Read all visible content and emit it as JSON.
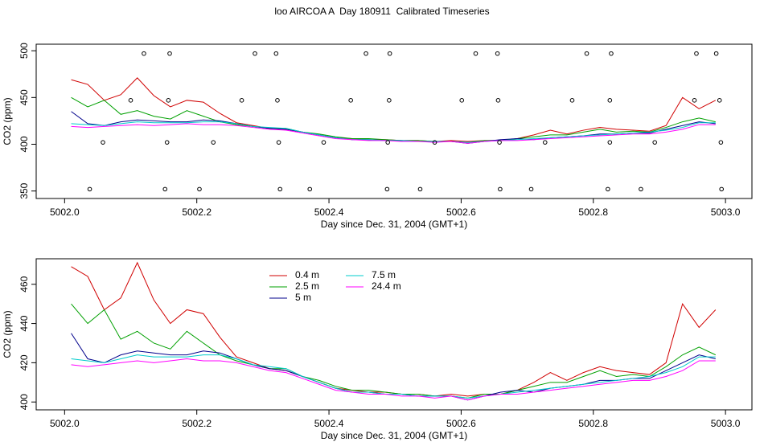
{
  "chart_data": [
    {
      "type": "line",
      "title": "loo AIRCOA A  Day 180911  Calibrated Timeseries",
      "xlabel": "Day since Dec. 31, 2004 (GMT+1)",
      "ylabel": "CO2 (ppm)",
      "x": [
        5002.01,
        5002.035,
        5002.06,
        5002.085,
        5002.11,
        5002.135,
        5002.16,
        5002.185,
        5002.21,
        5002.235,
        5002.26,
        5002.285,
        5002.31,
        5002.335,
        5002.36,
        5002.385,
        5002.41,
        5002.435,
        5002.46,
        5002.485,
        5002.51,
        5002.535,
        5002.56,
        5002.585,
        5002.61,
        5002.635,
        5002.66,
        5002.685,
        5002.71,
        5002.735,
        5002.76,
        5002.785,
        5002.81,
        5002.835,
        5002.86,
        5002.885,
        5002.91,
        5002.935,
        5002.96,
        5002.985
      ],
      "series": [
        {
          "color": "#d00000",
          "values": [
            469,
            464,
            447,
            453,
            471,
            452,
            440,
            447,
            445,
            433,
            423,
            420,
            417,
            416,
            413,
            410,
            407,
            406,
            405,
            405,
            404,
            404,
            403,
            404,
            403,
            404,
            404,
            406,
            410,
            415,
            411,
            415,
            418,
            416,
            415,
            414,
            420,
            450,
            438,
            447
          ]
        },
        {
          "color": "#00a000",
          "values": [
            450,
            440,
            447,
            432,
            436,
            430,
            427,
            436,
            430,
            424,
            421,
            419,
            417,
            417,
            413,
            411,
            408,
            406,
            406,
            405,
            404,
            404,
            403,
            403,
            402,
            404,
            404,
            406,
            408,
            410,
            410,
            413,
            416,
            413,
            414,
            413,
            418,
            424,
            428,
            424
          ]
        },
        {
          "color": "#00008b",
          "values": [
            435,
            422,
            420,
            424,
            426,
            425,
            424,
            424,
            426,
            425,
            422,
            419,
            417,
            416,
            413,
            410,
            407,
            405,
            405,
            404,
            404,
            403,
            403,
            403,
            401,
            403,
            405,
            406,
            405,
            407,
            408,
            409,
            411,
            411,
            412,
            412,
            416,
            420,
            424,
            422
          ]
        },
        {
          "color": "#00cccc",
          "values": [
            422,
            421,
            420,
            422,
            424,
            423,
            423,
            423,
            424,
            424,
            422,
            419,
            418,
            417,
            413,
            410,
            407,
            405,
            405,
            404,
            404,
            403,
            403,
            403,
            402,
            403,
            404,
            405,
            406,
            407,
            408,
            409,
            410,
            411,
            412,
            413,
            415,
            418,
            423,
            423
          ]
        },
        {
          "color": "#ff00ff",
          "values": [
            419,
            418,
            419,
            420,
            421,
            420,
            421,
            422,
            421,
            421,
            420,
            418,
            416,
            415,
            412,
            409,
            406,
            405,
            404,
            404,
            403,
            403,
            402,
            403,
            401,
            403,
            404,
            404,
            405,
            406,
            407,
            408,
            409,
            410,
            411,
            411,
            413,
            416,
            421,
            421
          ]
        }
      ],
      "points": {
        "color": "#000000",
        "x": [
          5002.12,
          5002.159,
          5002.288,
          5002.32,
          5002.456,
          5002.492,
          5002.622,
          5002.655,
          5002.79,
          5002.827,
          5002.956,
          5002.986,
          5002.1,
          5002.157,
          5002.268,
          5002.322,
          5002.433,
          5002.491,
          5002.601,
          5002.656,
          5002.768,
          5002.825,
          5002.953,
          5002.991,
          5002.058,
          5002.155,
          5002.225,
          5002.324,
          5002.392,
          5002.489,
          5002.56,
          5002.658,
          5002.727,
          5002.825,
          5002.893,
          5002.993,
          5002.038,
          5002.152,
          5002.204,
          5002.326,
          5002.371,
          5002.488,
          5002.538,
          5002.659,
          5002.706,
          5002.822,
          5002.872,
          5002.994
        ],
        "y": [
          497,
          497,
          497,
          497,
          497,
          497,
          497,
          497,
          497,
          497,
          497,
          497,
          447,
          447,
          447,
          447,
          447,
          447,
          447,
          447,
          447,
          447,
          447,
          447,
          402,
          402,
          402,
          402,
          402,
          402,
          402,
          402,
          402,
          402,
          402,
          402,
          352,
          352,
          352,
          352,
          352,
          352,
          352,
          352,
          352,
          352,
          352,
          352
        ]
      },
      "xlim": [
        5001.957,
        5003.04
      ],
      "xticks": [
        {
          "value": 5002.0,
          "label": "5002.0"
        },
        {
          "value": 5002.2,
          "label": "5002.2"
        },
        {
          "value": 5002.4,
          "label": "5002.4"
        },
        {
          "value": 5002.6,
          "label": "5002.6"
        },
        {
          "value": 5002.8,
          "label": "5002.8"
        },
        {
          "value": 5003.0,
          "label": "5003.0"
        }
      ],
      "ylim": [
        342,
        507
      ],
      "yticks": [
        350,
        400,
        450,
        500
      ]
    },
    {
      "type": "line",
      "xlabel": "Day since Dec. 31, 2004 (GMT+1)",
      "ylabel": "CO2 (ppm)",
      "x": [
        5002.01,
        5002.035,
        5002.06,
        5002.085,
        5002.11,
        5002.135,
        5002.16,
        5002.185,
        5002.21,
        5002.235,
        5002.26,
        5002.285,
        5002.31,
        5002.335,
        5002.36,
        5002.385,
        5002.41,
        5002.435,
        5002.46,
        5002.485,
        5002.51,
        5002.535,
        5002.56,
        5002.585,
        5002.61,
        5002.635,
        5002.66,
        5002.685,
        5002.71,
        5002.735,
        5002.76,
        5002.785,
        5002.81,
        5002.835,
        5002.86,
        5002.885,
        5002.91,
        5002.935,
        5002.96,
        5002.985
      ],
      "series": [
        {
          "name": "0.4 m",
          "color": "#d00000",
          "values": [
            469,
            464,
            447,
            453,
            471,
            452,
            440,
            447,
            445,
            433,
            423,
            420,
            417,
            416,
            413,
            410,
            407,
            406,
            405,
            405,
            404,
            404,
            403,
            404,
            403,
            404,
            404,
            406,
            410,
            415,
            411,
            415,
            418,
            416,
            415,
            414,
            420,
            450,
            438,
            447
          ]
        },
        {
          "name": "2.5 m",
          "color": "#00a000",
          "values": [
            450,
            440,
            447,
            432,
            436,
            430,
            427,
            436,
            430,
            424,
            421,
            419,
            417,
            417,
            413,
            411,
            408,
            406,
            406,
            405,
            404,
            404,
            403,
            403,
            402,
            404,
            404,
            406,
            408,
            410,
            410,
            413,
            416,
            413,
            414,
            413,
            418,
            424,
            428,
            424
          ]
        },
        {
          "name": "5 m",
          "color": "#00008b",
          "values": [
            435,
            422,
            420,
            424,
            426,
            425,
            424,
            424,
            426,
            425,
            422,
            419,
            417,
            416,
            413,
            410,
            407,
            405,
            405,
            404,
            404,
            403,
            403,
            403,
            401,
            403,
            405,
            406,
            405,
            407,
            408,
            409,
            411,
            411,
            412,
            412,
            416,
            420,
            424,
            422
          ]
        },
        {
          "name": "7.5 m",
          "color": "#00cccc",
          "values": [
            422,
            421,
            420,
            422,
            424,
            423,
            423,
            423,
            424,
            424,
            422,
            419,
            418,
            417,
            413,
            410,
            407,
            405,
            405,
            404,
            404,
            403,
            403,
            403,
            402,
            403,
            404,
            405,
            406,
            407,
            408,
            409,
            410,
            411,
            412,
            413,
            415,
            418,
            423,
            423
          ]
        },
        {
          "name": "24.4 m",
          "color": "#ff00ff",
          "values": [
            419,
            418,
            419,
            420,
            421,
            420,
            421,
            422,
            421,
            421,
            420,
            418,
            416,
            415,
            412,
            409,
            406,
            405,
            404,
            404,
            403,
            403,
            402,
            403,
            401,
            403,
            404,
            404,
            405,
            406,
            407,
            408,
            409,
            410,
            411,
            411,
            413,
            416,
            421,
            421
          ]
        }
      ],
      "xlim": [
        5001.957,
        5003.04
      ],
      "xticks": [
        {
          "value": 5002.0,
          "label": "5002.0"
        },
        {
          "value": 5002.2,
          "label": "5002.2"
        },
        {
          "value": 5002.4,
          "label": "5002.4"
        },
        {
          "value": 5002.6,
          "label": "5002.6"
        },
        {
          "value": 5002.8,
          "label": "5002.8"
        },
        {
          "value": 5003.0,
          "label": "5003.0"
        }
      ],
      "ylim": [
        396,
        473
      ],
      "yticks": [
        400,
        420,
        440,
        460
      ]
    }
  ]
}
